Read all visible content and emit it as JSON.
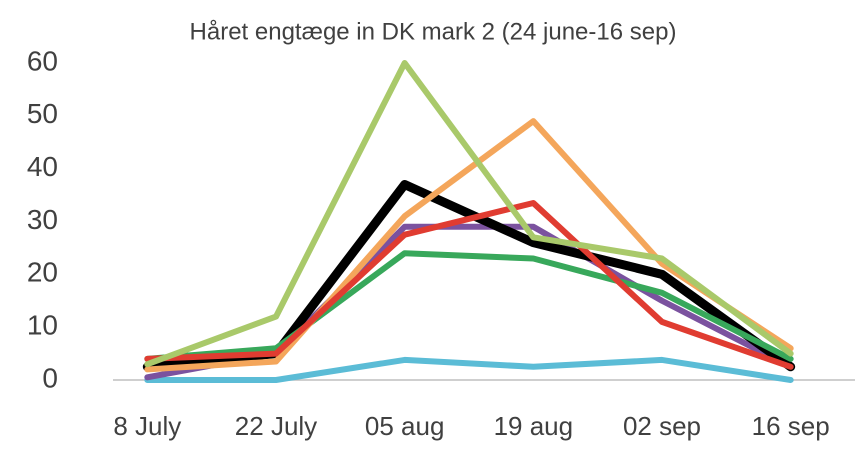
{
  "chart_data": {
    "type": "line",
    "title": "Håret engtæge in DK mark 2 (24 june-16 sep)",
    "categories": [
      "8 July",
      "22 July",
      "05 aug",
      "19 aug",
      "02 sep",
      "16 sep"
    ],
    "series": [
      {
        "color": "#5bbcd6",
        "values": [
          0,
          0,
          3.8,
          2.5,
          3.8,
          0
        ]
      },
      {
        "color": "#7b529f",
        "values": [
          0.5,
          5,
          29,
          29,
          15,
          2.5
        ]
      },
      {
        "color": "#000000",
        "values": [
          2.5,
          5,
          37,
          26,
          20,
          2.5
        ]
      },
      {
        "color": "#38a85b",
        "values": [
          4,
          6,
          24,
          23,
          16.5,
          4
        ]
      },
      {
        "color": "#f4a65b",
        "values": [
          2,
          3.5,
          31,
          49,
          22,
          6
        ]
      },
      {
        "color": "#e03c31",
        "values": [
          4,
          5,
          27.5,
          33.5,
          11,
          2.5
        ]
      },
      {
        "color": "#a9c96a",
        "values": [
          3,
          12,
          60,
          27,
          23,
          5
        ]
      }
    ],
    "ylim": [
      0,
      60
    ],
    "yticks": [
      0,
      10,
      20,
      30,
      40,
      50,
      60
    ],
    "grid": false
  }
}
